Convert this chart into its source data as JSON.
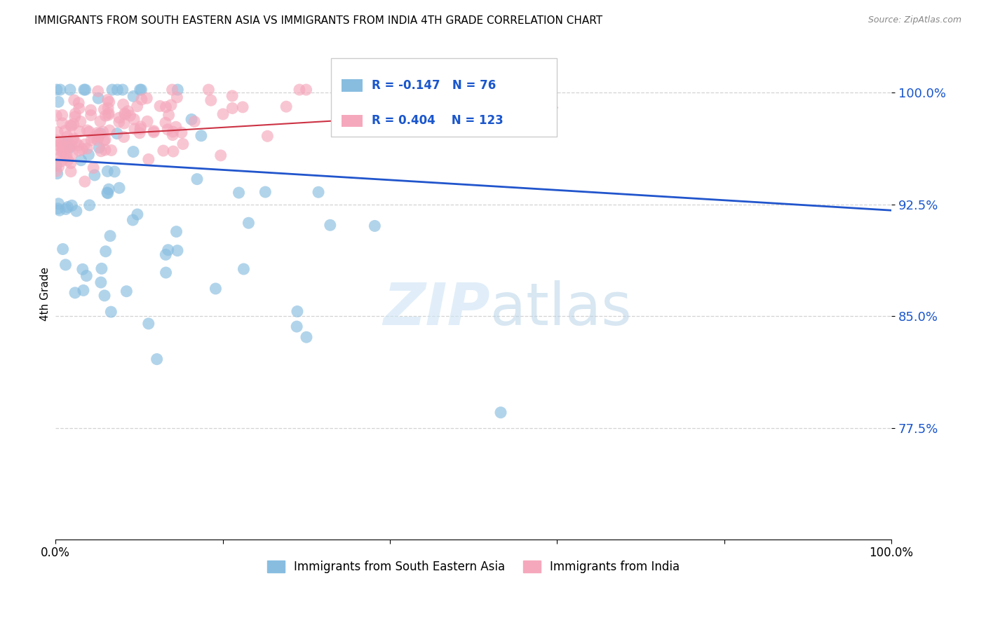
{
  "title": "IMMIGRANTS FROM SOUTH EASTERN ASIA VS IMMIGRANTS FROM INDIA 4TH GRADE CORRELATION CHART",
  "source": "Source: ZipAtlas.com",
  "ylabel": "4th Grade",
  "legend_blue_label": "Immigrants from South Eastern Asia",
  "legend_pink_label": "Immigrants from India",
  "r_blue": -0.147,
  "n_blue": 76,
  "r_pink": 0.404,
  "n_pink": 123,
  "blue_color": "#88bde0",
  "pink_color": "#f5a8bc",
  "line_blue_color": "#2155cc",
  "line_pink_color": "#cc3344",
  "text_blue_color": "#1a56cc",
  "ytick_vals": [
    1.0,
    0.925,
    0.85,
    0.775
  ],
  "ytick_labels": [
    "100.0%",
    "92.5%",
    "85.0%",
    "77.5%"
  ],
  "xmin": 0.0,
  "xmax": 1.0,
  "ymin": 0.7,
  "ymax": 1.03,
  "blue_line_x0": 0.0,
  "blue_line_y0": 0.955,
  "blue_line_x1": 1.0,
  "blue_line_y1": 0.921,
  "pink_line_x0": 0.0,
  "pink_line_y0": 0.97,
  "pink_line_x1": 0.6,
  "pink_line_y1": 0.99
}
